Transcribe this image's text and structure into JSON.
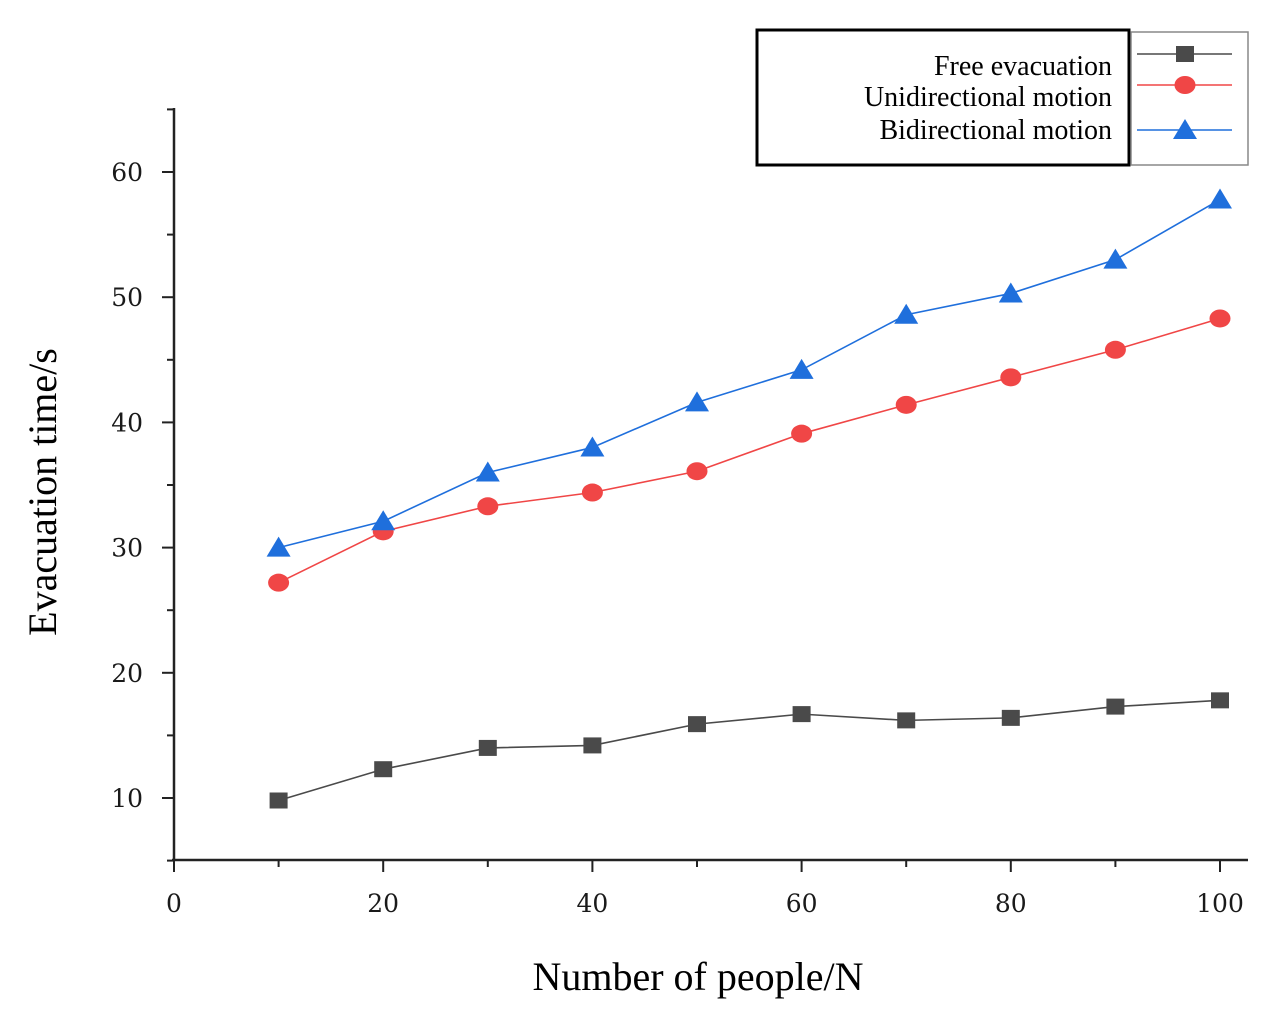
{
  "chart_data": {
    "type": "line",
    "title": "",
    "xlabel": "Number of people/N",
    "ylabel": "Evacuation time/s",
    "xlim": [
      0,
      103
    ],
    "ylim": [
      5,
      65
    ],
    "xticks": [
      0,
      20,
      40,
      60,
      80,
      100
    ],
    "yticks": [
      10,
      20,
      30,
      40,
      50,
      60
    ],
    "grid": false,
    "legend_position": "top-right",
    "x": [
      10,
      20,
      30,
      40,
      50,
      60,
      70,
      80,
      90,
      100
    ],
    "series": [
      {
        "name": "Free evacuation",
        "marker": "square",
        "color": "#4a4a4a",
        "values": [
          9.8,
          12.3,
          14.0,
          14.2,
          15.9,
          16.7,
          16.2,
          16.4,
          17.3,
          17.8
        ]
      },
      {
        "name": "Unidirectional motion",
        "marker": "circle",
        "color": "#f04646",
        "values": [
          27.2,
          31.3,
          33.3,
          34.4,
          36.1,
          39.1,
          41.4,
          43.6,
          45.8,
          48.3
        ]
      },
      {
        "name": "Bidirectional motion",
        "marker": "triangle",
        "color": "#1f6fdc",
        "values": [
          30.0,
          32.1,
          36.0,
          38.0,
          41.6,
          44.2,
          48.6,
          50.3,
          53.0,
          57.8
        ]
      }
    ]
  }
}
